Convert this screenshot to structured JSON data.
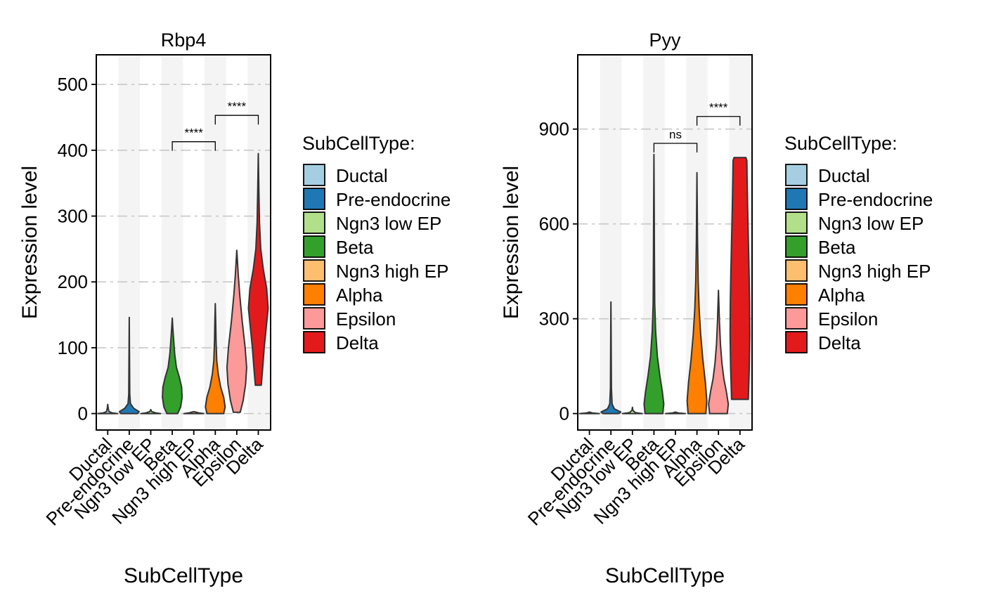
{
  "chart_data": [
    {
      "type": "violin",
      "title": "Rbp4",
      "xlabel": "SubCellType",
      "ylabel": "Expression level",
      "ylim": [
        -25,
        545
      ],
      "yticks": [
        0,
        100,
        200,
        300,
        400,
        500
      ],
      "grid": "horizontal dashed",
      "categories": [
        "Ductal",
        "Pre-endocrine",
        "Ngn3 low EP",
        "Beta",
        "Ngn3 high EP",
        "Alpha",
        "Epsilon",
        "Delta"
      ],
      "colors": [
        "#a6cee3",
        "#1f78b4",
        "#b2df8a",
        "#33a02c",
        "#fdbf6f",
        "#ff7f00",
        "#fb9a99",
        "#e31a1c"
      ],
      "violins": [
        {
          "category": "Ductal",
          "min": 0,
          "max": 14,
          "profile": [
            [
              0,
              1.0
            ],
            [
              1,
              0.45
            ],
            [
              3,
              0.12
            ],
            [
              8,
              0.05
            ],
            [
              14,
              0.0
            ]
          ]
        },
        {
          "category": "Pre-endocrine",
          "min": 0,
          "max": 146,
          "profile": [
            [
              0,
              0.85
            ],
            [
              3,
              1.0
            ],
            [
              8,
              0.45
            ],
            [
              15,
              0.12
            ],
            [
              30,
              0.05
            ],
            [
              80,
              0.03
            ],
            [
              146,
              0.0
            ]
          ]
        },
        {
          "category": "Ngn3 low EP",
          "min": 0,
          "max": 6,
          "profile": [
            [
              0,
              1.0
            ],
            [
              1,
              0.5
            ],
            [
              3,
              0.1
            ],
            [
              6,
              0.0
            ]
          ]
        },
        {
          "category": "Beta",
          "min": 0,
          "max": 145,
          "profile": [
            [
              0,
              0.55
            ],
            [
              10,
              0.85
            ],
            [
              25,
              1.0
            ],
            [
              40,
              0.95
            ],
            [
              55,
              0.72
            ],
            [
              70,
              0.42
            ],
            [
              90,
              0.25
            ],
            [
              110,
              0.15
            ],
            [
              130,
              0.06
            ],
            [
              145,
              0.0
            ]
          ]
        },
        {
          "category": "Ngn3 high EP",
          "min": 0,
          "max": 3,
          "profile": [
            [
              0,
              1.0
            ],
            [
              1,
              0.5
            ],
            [
              3,
              0.0
            ]
          ]
        },
        {
          "category": "Alpha",
          "min": 0,
          "max": 167,
          "profile": [
            [
              0,
              0.85
            ],
            [
              10,
              1.0
            ],
            [
              25,
              0.85
            ],
            [
              40,
              0.55
            ],
            [
              60,
              0.3
            ],
            [
              80,
              0.15
            ],
            [
              110,
              0.08
            ],
            [
              140,
              0.04
            ],
            [
              167,
              0.0
            ]
          ]
        },
        {
          "category": "Epsilon",
          "min": 2,
          "max": 248,
          "profile": [
            [
              2,
              0.35
            ],
            [
              20,
              0.65
            ],
            [
              45,
              0.9
            ],
            [
              70,
              1.0
            ],
            [
              100,
              0.85
            ],
            [
              140,
              0.55
            ],
            [
              180,
              0.3
            ],
            [
              210,
              0.15
            ],
            [
              230,
              0.07
            ],
            [
              248,
              0.0
            ]
          ]
        },
        {
          "category": "Delta",
          "min": 43,
          "max": 395,
          "profile": [
            [
              43,
              0.3
            ],
            [
              70,
              0.45
            ],
            [
              100,
              0.6
            ],
            [
              130,
              0.8
            ],
            [
              160,
              1.0
            ],
            [
              190,
              0.85
            ],
            [
              220,
              0.5
            ],
            [
              250,
              0.25
            ],
            [
              290,
              0.12
            ],
            [
              340,
              0.06
            ],
            [
              395,
              0.0
            ]
          ]
        }
      ],
      "comparisons": [
        {
          "from": "Beta",
          "to": "Alpha",
          "label": "****",
          "y": 413
        },
        {
          "from": "Alpha",
          "to": "Delta",
          "label": "****",
          "y": 453
        }
      ]
    },
    {
      "type": "violin",
      "title": "Pyy",
      "xlabel": "SubCellType",
      "ylabel": "Expression level",
      "ylim": [
        -52,
        1135
      ],
      "yticks": [
        0,
        300,
        600,
        900
      ],
      "grid": "horizontal dashed",
      "categories": [
        "Ductal",
        "Pre-endocrine",
        "Ngn3 low EP",
        "Beta",
        "Ngn3 high EP",
        "Alpha",
        "Epsilon",
        "Delta"
      ],
      "colors": [
        "#a6cee3",
        "#1f78b4",
        "#b2df8a",
        "#33a02c",
        "#fdbf6f",
        "#ff7f00",
        "#fb9a99",
        "#e31a1c"
      ],
      "violins": [
        {
          "category": "Ductal",
          "min": 0,
          "max": 5,
          "profile": [
            [
              0,
              1.0
            ],
            [
              2,
              0.3
            ],
            [
              5,
              0.0
            ]
          ]
        },
        {
          "category": "Pre-endocrine",
          "min": 0,
          "max": 353,
          "profile": [
            [
              0,
              0.8
            ],
            [
              5,
              1.0
            ],
            [
              15,
              0.35
            ],
            [
              30,
              0.12
            ],
            [
              80,
              0.05
            ],
            [
              200,
              0.03
            ],
            [
              353,
              0.0
            ]
          ]
        },
        {
          "category": "Ngn3 low EP",
          "min": 0,
          "max": 20,
          "profile": [
            [
              0,
              1.0
            ],
            [
              3,
              0.3
            ],
            [
              10,
              0.05
            ],
            [
              20,
              0.0
            ]
          ]
        },
        {
          "category": "Beta",
          "min": 0,
          "max": 820,
          "profile": [
            [
              0,
              0.9
            ],
            [
              30,
              1.0
            ],
            [
              70,
              0.85
            ],
            [
              120,
              0.6
            ],
            [
              180,
              0.35
            ],
            [
              260,
              0.17
            ],
            [
              350,
              0.08
            ],
            [
              500,
              0.05
            ],
            [
              650,
              0.03
            ],
            [
              820,
              0.0
            ]
          ]
        },
        {
          "category": "Ngn3 high EP",
          "min": 0,
          "max": 5,
          "profile": [
            [
              0,
              1.0
            ],
            [
              2,
              0.3
            ],
            [
              5,
              0.0
            ]
          ]
        },
        {
          "category": "Alpha",
          "min": 0,
          "max": 762,
          "profile": [
            [
              0,
              0.9
            ],
            [
              40,
              1.0
            ],
            [
              100,
              0.85
            ],
            [
              170,
              0.6
            ],
            [
              250,
              0.38
            ],
            [
              330,
              0.22
            ],
            [
              420,
              0.12
            ],
            [
              550,
              0.06
            ],
            [
              762,
              0.0
            ]
          ]
        },
        {
          "category": "Epsilon",
          "min": 0,
          "max": 390,
          "profile": [
            [
              0,
              0.9
            ],
            [
              30,
              1.0
            ],
            [
              70,
              0.8
            ],
            [
              110,
              0.55
            ],
            [
              160,
              0.35
            ],
            [
              220,
              0.2
            ],
            [
              290,
              0.1
            ],
            [
              390,
              0.0
            ]
          ]
        },
        {
          "category": "Delta",
          "min": 45,
          "max": 810,
          "profile": [
            [
              45,
              0.85
            ],
            [
              150,
              0.95
            ],
            [
              250,
              1.0
            ],
            [
              350,
              0.98
            ],
            [
              450,
              0.92
            ],
            [
              550,
              0.85
            ],
            [
              650,
              0.78
            ],
            [
              750,
              0.72
            ],
            [
              800,
              0.7
            ],
            [
              810,
              0.6
            ]
          ]
        }
      ],
      "comparisons": [
        {
          "from": "Beta",
          "to": "Alpha",
          "label": "ns",
          "y": 855
        },
        {
          "from": "Alpha",
          "to": "Delta",
          "label": "****",
          "y": 940
        }
      ]
    }
  ],
  "legend": {
    "title": "SubCellType:",
    "items": [
      {
        "label": "Ductal",
        "color": "#a6cee3"
      },
      {
        "label": "Pre-endocrine",
        "color": "#1f78b4"
      },
      {
        "label": "Ngn3 low EP",
        "color": "#b2df8a"
      },
      {
        "label": "Beta",
        "color": "#33a02c"
      },
      {
        "label": "Ngn3 high EP",
        "color": "#fdbf6f"
      },
      {
        "label": "Alpha",
        "color": "#ff7f00"
      },
      {
        "label": "Epsilon",
        "color": "#fb9a99"
      },
      {
        "label": "Delta",
        "color": "#e31a1c"
      }
    ]
  }
}
